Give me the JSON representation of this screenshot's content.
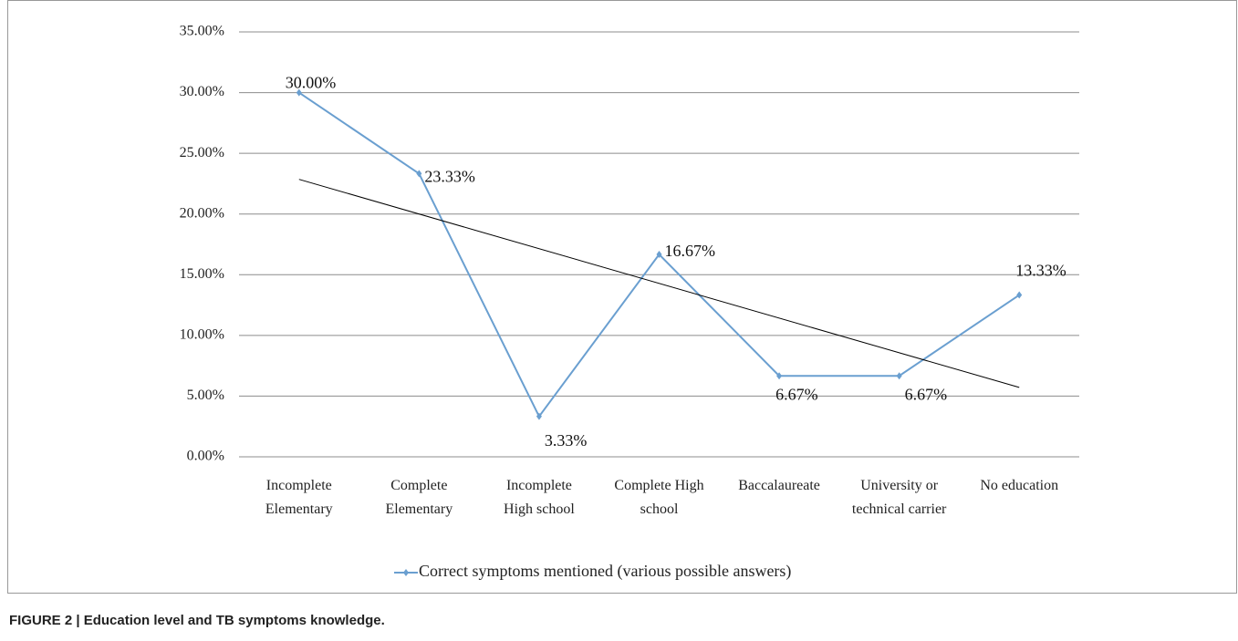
{
  "chart_data": {
    "type": "line",
    "caption": "FIGURE 2 | Education level and TB symptoms knowledge.",
    "categories": [
      "Incomplete Elementary",
      "Complete Elementary",
      "Incomplete High school",
      "Complete High school",
      "Baccalaureate",
      "University or technical carrier",
      "No education"
    ],
    "series": [
      {
        "name": "Correct symptoms mentioned (various possible answers)",
        "color": "#6a9fd0",
        "values": [
          30,
          23.33,
          3.33,
          16.67,
          6.67,
          6.67,
          13.33
        ],
        "value_labels": [
          "30.00%",
          "23.33%",
          "3.33%",
          "16.67%",
          "6.67%",
          "6.67%",
          "13.33%"
        ]
      }
    ],
    "ylim": [
      0,
      35
    ],
    "yticks": [
      {
        "value": 0,
        "label": "0.00%"
      },
      {
        "value": 5,
        "label": "5.00%"
      },
      {
        "value": 10,
        "label": "10.00%"
      },
      {
        "value": 15,
        "label": "15.00%"
      },
      {
        "value": 20,
        "label": "20.00%"
      },
      {
        "value": 25,
        "label": "25.00%"
      },
      {
        "value": 30,
        "label": "30.00%"
      },
      {
        "value": 35,
        "label": "35.00%"
      }
    ],
    "grid": true,
    "trendline": true,
    "legend": "bottom"
  }
}
